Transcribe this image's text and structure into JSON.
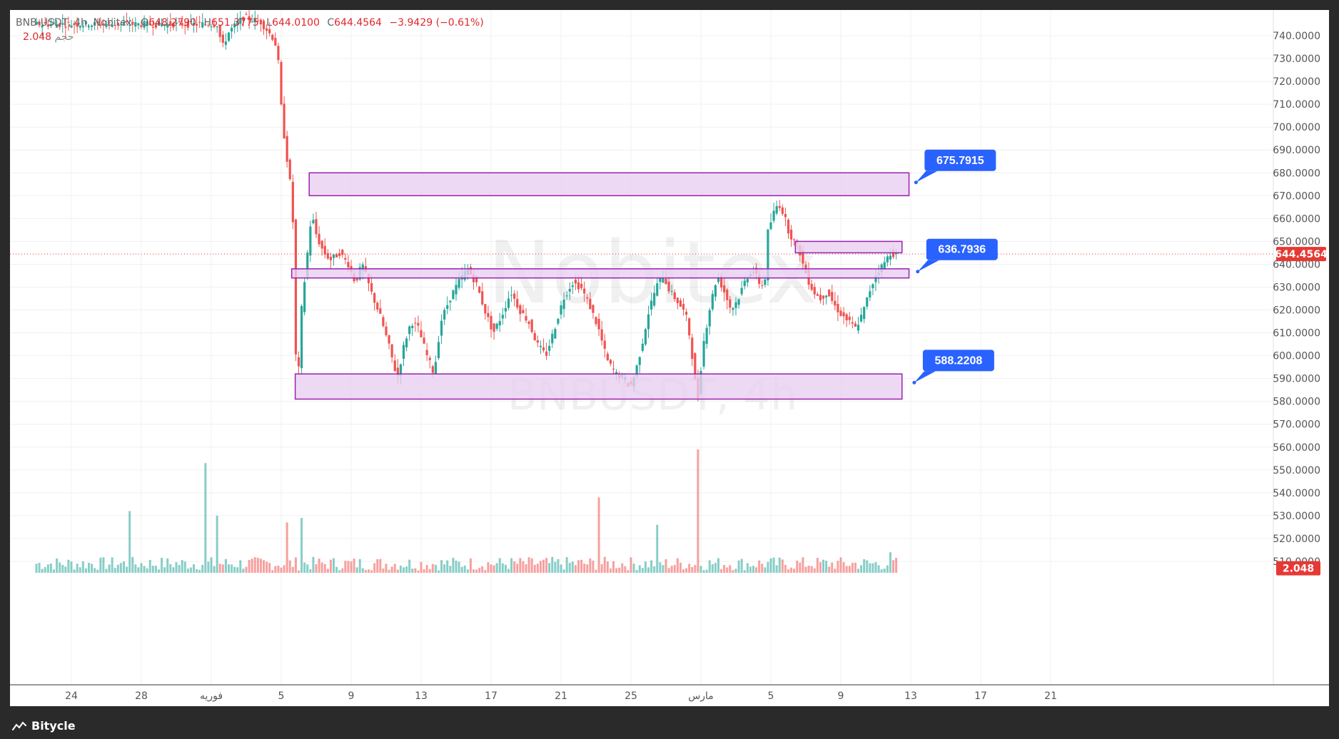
{
  "legend": {
    "symbol": "BNB-USDT, 4h, Nobitex",
    "open_label": "O",
    "open": "648.2790",
    "high_label": "H",
    "high": "651.3775",
    "low_label": "L",
    "low": "644.0100",
    "close_label": "C",
    "close": "644.4564",
    "change": "−3.9429 (−0.61%)",
    "volume_label": "حجم",
    "volume": "2.048"
  },
  "watermark": {
    "line1": "Nobitex",
    "line2": "BNBUSDT, 4h"
  },
  "footer": {
    "brand": "Bitycle"
  },
  "colors": {
    "up": "#26a69a",
    "down": "#ef5350",
    "zone_fill": "#e8cff0",
    "zone_border": "#9a20b0",
    "callout": "#2962ff",
    "price_tag": "#e53935"
  },
  "chart_data": {
    "type": "candlestick",
    "symbol": "BNB-USDT",
    "timeframe": "4h",
    "y_axis": {
      "min": 505,
      "max": 745,
      "ticks": [
        "740.0000",
        "730.0000",
        "720.0000",
        "710.0000",
        "700.0000",
        "690.0000",
        "680.0000",
        "670.0000",
        "660.0000",
        "650.0000",
        "640.0000",
        "630.0000",
        "620.0000",
        "610.0000",
        "600.0000",
        "590.0000",
        "580.0000",
        "570.0000",
        "560.0000",
        "550.0000",
        "540.0000",
        "530.0000",
        "520.0000",
        "510.0000"
      ]
    },
    "x_axis": {
      "ticks": [
        {
          "label": "24",
          "day": -12
        },
        {
          "label": "28",
          "day": -8
        },
        {
          "label": "فوريه",
          "day": -4
        },
        {
          "label": "5",
          "day": 0
        },
        {
          "label": "9",
          "day": 4
        },
        {
          "label": "13",
          "day": 8
        },
        {
          "label": "17",
          "day": 12
        },
        {
          "label": "21",
          "day": 16
        },
        {
          "label": "25",
          "day": 20
        },
        {
          "label": "مارس",
          "day": 24
        },
        {
          "label": "5",
          "day": 28
        },
        {
          "label": "9",
          "day": 32
        },
        {
          "label": "13",
          "day": 36
        },
        {
          "label": "17",
          "day": 40
        },
        {
          "label": "21",
          "day": 44
        }
      ]
    },
    "current_price": "644.4564",
    "current_price_value": 644.4564,
    "current_volume": "2.048",
    "price_path": [
      [
        -3.5,
        745
      ],
      [
        -3.2,
        735
      ],
      [
        -2.8,
        742
      ],
      [
        -2.0,
        748
      ],
      [
        -1.0,
        746
      ],
      [
        -0.2,
        738
      ],
      [
        0.0,
        728
      ],
      [
        0.2,
        705
      ],
      [
        0.4,
        692
      ],
      [
        0.6,
        680
      ],
      [
        0.8,
        668
      ],
      [
        0.9,
        640
      ],
      [
        1.0,
        600
      ],
      [
        1.1,
        582
      ],
      [
        1.3,
        618
      ],
      [
        1.6,
        640
      ],
      [
        1.9,
        662
      ],
      [
        2.2,
        652
      ],
      [
        2.6,
        645
      ],
      [
        3.0,
        642
      ],
      [
        3.5,
        645
      ],
      [
        4.0,
        640
      ],
      [
        4.4,
        632
      ],
      [
        4.8,
        640
      ],
      [
        5.3,
        628
      ],
      [
        5.8,
        618
      ],
      [
        6.3,
        605
      ],
      [
        6.8,
        590
      ],
      [
        7.2,
        605
      ],
      [
        7.6,
        615
      ],
      [
        8.0,
        612
      ],
      [
        8.5,
        600
      ],
      [
        8.9,
        592
      ],
      [
        9.3,
        615
      ],
      [
        9.8,
        625
      ],
      [
        10.3,
        632
      ],
      [
        10.8,
        638
      ],
      [
        11.3,
        632
      ],
      [
        11.8,
        620
      ],
      [
        12.3,
        610
      ],
      [
        12.8,
        618
      ],
      [
        13.3,
        628
      ],
      [
        13.8,
        620
      ],
      [
        14.3,
        615
      ],
      [
        14.8,
        605
      ],
      [
        15.3,
        600
      ],
      [
        15.8,
        612
      ],
      [
        16.3,
        625
      ],
      [
        16.8,
        632
      ],
      [
        17.3,
        630
      ],
      [
        17.8,
        622
      ],
      [
        18.3,
        612
      ],
      [
        18.8,
        598
      ],
      [
        19.3,
        592
      ],
      [
        19.8,
        590
      ],
      [
        20.1,
        586
      ],
      [
        20.4,
        592
      ],
      [
        20.8,
        605
      ],
      [
        21.2,
        620
      ],
      [
        21.6,
        630
      ],
      [
        22.0,
        635
      ],
      [
        22.4,
        628
      ],
      [
        22.8,
        624
      ],
      [
        23.3,
        618
      ],
      [
        23.6,
        605
      ],
      [
        23.8,
        590
      ],
      [
        24.0,
        582
      ],
      [
        24.3,
        605
      ],
      [
        24.7,
        622
      ],
      [
        25.1,
        635
      ],
      [
        25.5,
        628
      ],
      [
        25.9,
        620
      ],
      [
        26.3,
        625
      ],
      [
        26.7,
        633
      ],
      [
        27.1,
        638
      ],
      [
        27.5,
        632
      ],
      [
        27.8,
        630
      ],
      [
        28.0,
        654
      ],
      [
        28.3,
        662
      ],
      [
        28.6,
        667
      ],
      [
        28.9,
        662
      ],
      [
        29.2,
        654
      ],
      [
        29.5,
        650
      ],
      [
        29.8,
        646
      ],
      [
        30.0,
        640
      ],
      [
        30.3,
        633
      ],
      [
        30.6,
        628
      ],
      [
        31.0,
        625
      ],
      [
        31.4,
        628
      ],
      [
        31.8,
        622
      ],
      [
        32.2,
        618
      ],
      [
        32.6,
        615
      ],
      [
        33.0,
        612
      ],
      [
        33.4,
        618
      ],
      [
        33.8,
        628
      ],
      [
        34.2,
        636
      ],
      [
        34.6,
        640
      ],
      [
        35.0,
        645
      ],
      [
        35.2,
        644.4564
      ]
    ],
    "volume_spikes": [
      {
        "day": -8.6,
        "value": 532
      },
      {
        "day": -4.3,
        "value": 553
      },
      {
        "day": -3.7,
        "value": 530
      },
      {
        "day": 0.3,
        "value": 527
      },
      {
        "day": 1.1,
        "value": 529
      },
      {
        "day": 18.2,
        "value": 538
      },
      {
        "day": 21.5,
        "value": 526
      },
      {
        "day": 23.9,
        "value": 559
      },
      {
        "day": 34.8,
        "value": 514
      }
    ],
    "zones": [
      {
        "name": "resistance",
        "y_top": 680,
        "y_bottom": 670,
        "day_start": 1.6,
        "day_end": 35.9
      },
      {
        "name": "mid-upper",
        "y_top": 650,
        "y_bottom": 645,
        "day_start": 29.4,
        "day_end": 35.5
      },
      {
        "name": "middle",
        "y_top": 638,
        "y_bottom": 634,
        "day_start": 0.6,
        "day_end": 35.9
      },
      {
        "name": "support",
        "y_top": 592,
        "y_bottom": 581,
        "day_start": 0.8,
        "day_end": 35.5
      }
    ],
    "callouts": [
      {
        "label": "675.7915",
        "price": 675.7915,
        "day": 36.3
      },
      {
        "label": "636.7936",
        "price": 636.7936,
        "day": 36.4
      },
      {
        "label": "588.2208",
        "price": 588.2208,
        "day": 36.2
      }
    ]
  }
}
